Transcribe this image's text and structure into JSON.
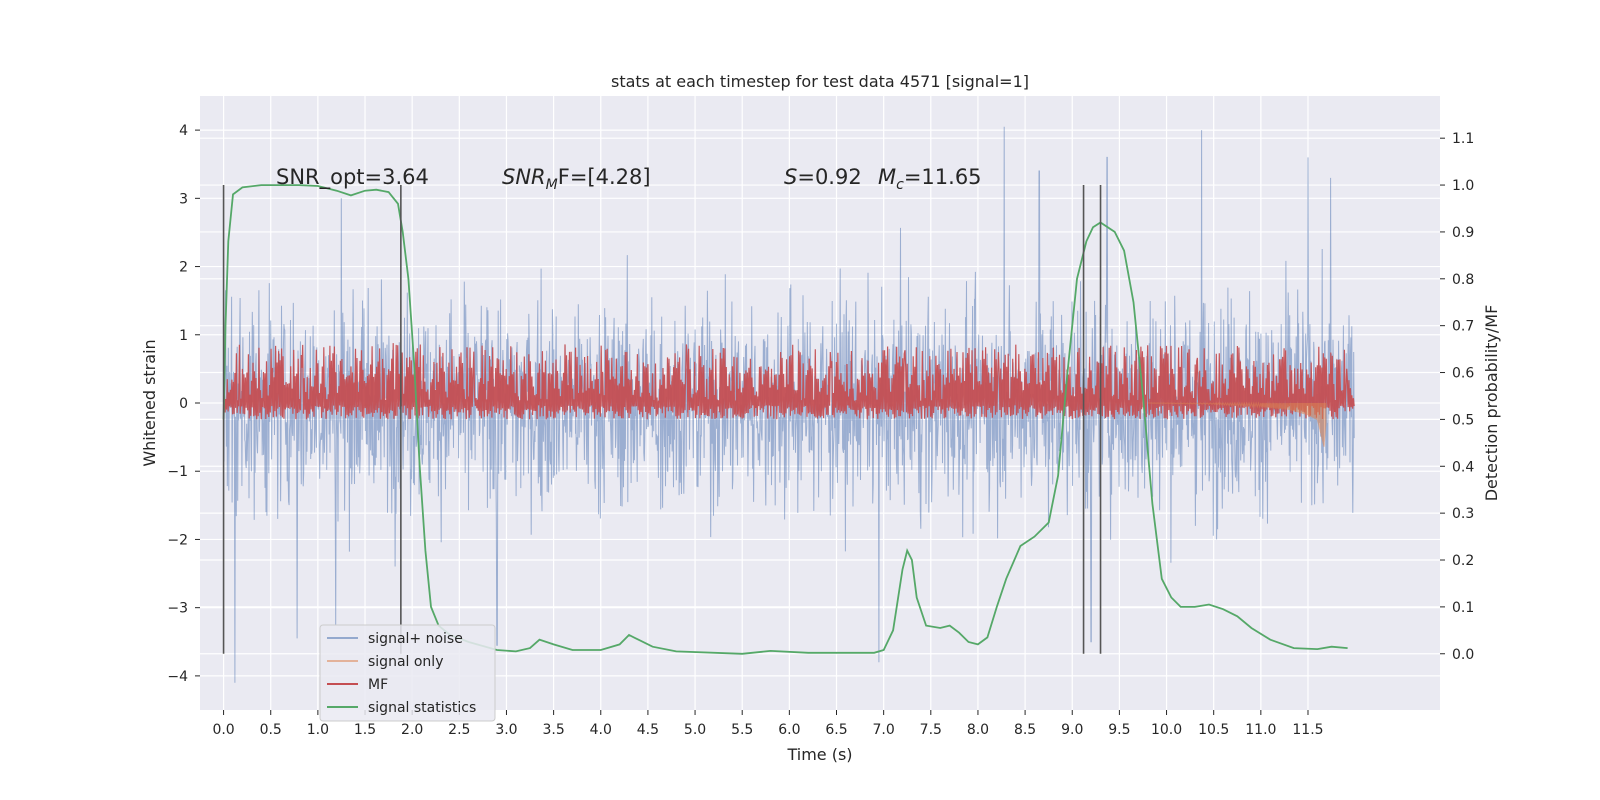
{
  "chart_data": {
    "type": "line",
    "title": "stats at each timestep for test data 4571 [signal=1]",
    "xlabel": "Time (s)",
    "ylabel": "Whitened strain",
    "y2label": "Detection probability/MF",
    "xlim": [
      -0.25,
      12.9
    ],
    "ylim": [
      -4.5,
      4.5
    ],
    "y2lim": [
      -0.12,
      1.19
    ],
    "x_ticks": [
      0.0,
      0.5,
      1.0,
      1.5,
      2.0,
      2.5,
      3.0,
      3.5,
      4.0,
      4.5,
      5.0,
      5.5,
      6.0,
      6.5,
      7.0,
      7.5,
      8.0,
      8.5,
      9.0,
      9.5,
      10.0,
      10.5,
      11.0,
      11.5
    ],
    "y_ticks": [
      -4,
      -3,
      -2,
      -1,
      0,
      1,
      2,
      3,
      4
    ],
    "y2_ticks": [
      0.0,
      0.1,
      0.2,
      0.3,
      0.4,
      0.5,
      0.6,
      0.7,
      0.8,
      0.9,
      1.0,
      1.1
    ],
    "grid": true,
    "legend_position": "lower-left",
    "annotations": {
      "snr_opt": "SNR_opt=3.64",
      "snr_mf_label": "SNR",
      "snr_mf_sub": "M",
      "snr_mf_rest": "F=[4.28]",
      "s_label": "S",
      "s_value": "=0.92",
      "mc_label": "M",
      "mc_sub": "c",
      "mc_value": "=11.65"
    },
    "vlines_s": [
      0.0,
      1.88,
      9.12,
      9.3
    ],
    "series": [
      {
        "name": "signal+ noise",
        "color": "#4c72b0",
        "axis": "left",
        "x_range": [
          0.0,
          11.99
        ],
        "envelope_std": 0.75,
        "peaks": [
          [
            0.12,
            3.0
          ],
          [
            1.25,
            3.0
          ],
          [
            8.28,
            4.05
          ],
          [
            8.65,
            3.4
          ],
          [
            9.37,
            3.6
          ],
          [
            10.37,
            4.0
          ],
          [
            11.5,
            3.6
          ],
          [
            11.74,
            3.3
          ],
          [
            0.78,
            -3.45
          ],
          [
            0.12,
            -4.1
          ],
          [
            2.9,
            -3.55
          ],
          [
            6.95,
            -3.8
          ],
          [
            9.2,
            -3.5
          ],
          [
            1.19,
            -3.25
          ]
        ]
      },
      {
        "name": "signal only",
        "color": "#dd8452",
        "axis": "left",
        "points": [
          [
            9.8,
            0.0
          ],
          [
            10.5,
            -0.02
          ],
          [
            11.0,
            -0.06
          ],
          [
            11.3,
            -0.1
          ],
          [
            11.5,
            -0.18
          ],
          [
            11.6,
            -0.25
          ],
          [
            11.67,
            -0.65
          ],
          [
            11.69,
            -0.3
          ]
        ]
      },
      {
        "name": "MF",
        "color": "#c44e52",
        "axis": "right",
        "x_range": [
          0.0,
          11.99
        ],
        "band": [
          0.5,
          0.62
        ]
      },
      {
        "name": "signal statistics",
        "color": "#55a868",
        "axis": "right",
        "points": [
          [
            0.0,
            0.5
          ],
          [
            0.02,
            0.7
          ],
          [
            0.05,
            0.88
          ],
          [
            0.1,
            0.98
          ],
          [
            0.2,
            0.995
          ],
          [
            0.4,
            1.0
          ],
          [
            0.8,
            1.0
          ],
          [
            1.0,
            0.998
          ],
          [
            1.2,
            0.988
          ],
          [
            1.35,
            0.978
          ],
          [
            1.5,
            0.988
          ],
          [
            1.62,
            0.99
          ],
          [
            1.75,
            0.985
          ],
          [
            1.85,
            0.96
          ],
          [
            1.9,
            0.9
          ],
          [
            1.96,
            0.8
          ],
          [
            2.02,
            0.62
          ],
          [
            2.08,
            0.4
          ],
          [
            2.14,
            0.22
          ],
          [
            2.2,
            0.1
          ],
          [
            2.28,
            0.06
          ],
          [
            2.4,
            0.04
          ],
          [
            2.6,
            0.025
          ],
          [
            2.9,
            0.008
          ],
          [
            3.1,
            0.005
          ],
          [
            3.25,
            0.012
          ],
          [
            3.35,
            0.03
          ],
          [
            3.5,
            0.02
          ],
          [
            3.7,
            0.008
          ],
          [
            4.0,
            0.008
          ],
          [
            4.2,
            0.02
          ],
          [
            4.3,
            0.04
          ],
          [
            4.4,
            0.03
          ],
          [
            4.55,
            0.015
          ],
          [
            4.8,
            0.005
          ],
          [
            5.5,
            0.0
          ],
          [
            5.8,
            0.006
          ],
          [
            6.2,
            0.002
          ],
          [
            6.9,
            0.002
          ],
          [
            7.0,
            0.008
          ],
          [
            7.1,
            0.05
          ],
          [
            7.2,
            0.18
          ],
          [
            7.25,
            0.22
          ],
          [
            7.3,
            0.2
          ],
          [
            7.35,
            0.12
          ],
          [
            7.45,
            0.06
          ],
          [
            7.6,
            0.055
          ],
          [
            7.7,
            0.06
          ],
          [
            7.8,
            0.045
          ],
          [
            7.9,
            0.025
          ],
          [
            8.0,
            0.02
          ],
          [
            8.1,
            0.035
          ],
          [
            8.2,
            0.1
          ],
          [
            8.3,
            0.16
          ],
          [
            8.45,
            0.23
          ],
          [
            8.6,
            0.25
          ],
          [
            8.75,
            0.28
          ],
          [
            8.85,
            0.38
          ],
          [
            8.95,
            0.6
          ],
          [
            9.05,
            0.8
          ],
          [
            9.15,
            0.88
          ],
          [
            9.22,
            0.91
          ],
          [
            9.3,
            0.92
          ],
          [
            9.45,
            0.9
          ],
          [
            9.55,
            0.86
          ],
          [
            9.65,
            0.75
          ],
          [
            9.75,
            0.55
          ],
          [
            9.85,
            0.32
          ],
          [
            9.95,
            0.16
          ],
          [
            10.05,
            0.12
          ],
          [
            10.15,
            0.1
          ],
          [
            10.3,
            0.1
          ],
          [
            10.45,
            0.105
          ],
          [
            10.6,
            0.095
          ],
          [
            10.75,
            0.08
          ],
          [
            10.9,
            0.055
          ],
          [
            11.1,
            0.03
          ],
          [
            11.35,
            0.012
          ],
          [
            11.6,
            0.01
          ],
          [
            11.75,
            0.015
          ],
          [
            11.92,
            0.012
          ]
        ]
      }
    ]
  }
}
